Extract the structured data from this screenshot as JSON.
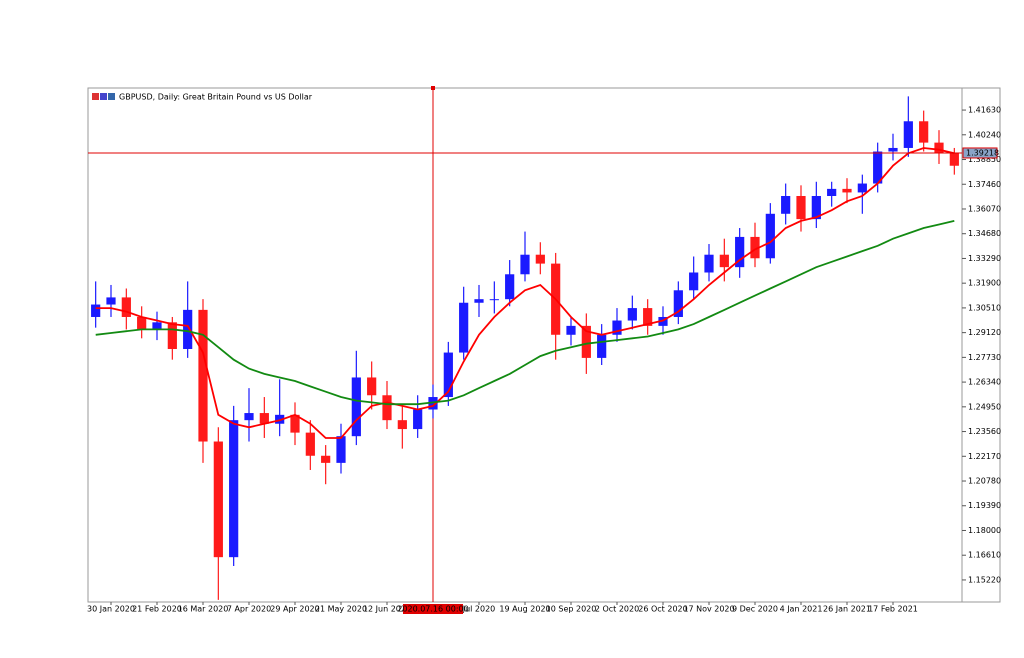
{
  "chart_data": {
    "type": "candlestick",
    "title": "GBPUSD, Daily:  Great Britain Pound vs US Dollar",
    "categories": [
      null,
      "30 Jan 2020",
      null,
      null,
      "21 Feb 2020",
      null,
      null,
      "16 Mar 2020",
      null,
      null,
      "7 Apr 2020",
      null,
      null,
      "29 Apr 2020",
      null,
      null,
      "21 May 2020",
      null,
      null,
      "12 Jun 2020",
      null,
      null,
      null,
      null,
      null,
      "Jul 2020",
      null,
      null,
      "19 Aug 2020",
      null,
      null,
      "10 Sep 2020",
      null,
      null,
      "2 Oct 2020",
      null,
      null,
      "26 Oct 2020",
      null,
      null,
      "17 Nov 2020",
      null,
      null,
      "9 Dec 2020",
      null,
      null,
      "4 Jan 2021",
      null,
      null,
      "26 Jan 2021",
      null,
      null,
      "17 Feb 2021",
      null,
      null,
      null,
      null
    ],
    "open": [
      1.3,
      1.307,
      1.311,
      1.3,
      1.293,
      1.297,
      1.282,
      1.304,
      1.23,
      1.165,
      1.242,
      1.246,
      1.24,
      1.245,
      1.235,
      1.222,
      1.218,
      1.233,
      1.266,
      1.256,
      1.242,
      1.237,
      1.248,
      1.255,
      1.28,
      1.308,
      1.31,
      1.31,
      1.324,
      1.335,
      1.33,
      1.29,
      1.295,
      1.277,
      1.29,
      1.298,
      1.305,
      1.295,
      1.3,
      1.315,
      1.325,
      1.335,
      1.328,
      1.345,
      1.333,
      1.358,
      1.368,
      1.355,
      1.368,
      1.372,
      1.37,
      1.375,
      1.393,
      1.395,
      1.41,
      1.398,
      1.392
    ],
    "high": [
      1.32,
      1.318,
      1.316,
      1.306,
      1.303,
      1.3,
      1.32,
      1.31,
      1.238,
      1.25,
      1.26,
      1.255,
      1.265,
      1.252,
      1.242,
      1.228,
      1.24,
      1.281,
      1.275,
      1.264,
      1.25,
      1.256,
      1.262,
      1.286,
      1.317,
      1.318,
      1.32,
      1.332,
      1.348,
      1.342,
      1.336,
      1.3,
      1.302,
      1.296,
      1.305,
      1.312,
      1.31,
      1.306,
      1.32,
      1.334,
      1.341,
      1.344,
      1.35,
      1.353,
      1.364,
      1.375,
      1.374,
      1.376,
      1.376,
      1.378,
      1.38,
      1.398,
      1.403,
      1.424,
      1.416,
      1.405,
      1.395
    ],
    "low": [
      1.294,
      1.3,
      1.293,
      1.288,
      1.287,
      1.276,
      1.277,
      1.218,
      1.141,
      1.16,
      1.23,
      1.232,
      1.233,
      1.228,
      1.214,
      1.206,
      1.212,
      1.228,
      1.248,
      1.237,
      1.226,
      1.232,
      1.243,
      1.25,
      1.276,
      1.3,
      1.302,
      1.306,
      1.32,
      1.324,
      1.276,
      1.284,
      1.268,
      1.273,
      1.286,
      1.293,
      1.29,
      1.29,
      1.296,
      1.31,
      1.32,
      1.32,
      1.322,
      1.328,
      1.33,
      1.352,
      1.348,
      1.35,
      1.362,
      1.364,
      1.358,
      1.37,
      1.388,
      1.39,
      1.393,
      1.386,
      1.38
    ],
    "close": [
      1.307,
      1.311,
      1.3,
      1.293,
      1.297,
      1.282,
      1.304,
      1.23,
      1.165,
      1.242,
      1.246,
      1.24,
      1.245,
      1.235,
      1.222,
      1.218,
      1.233,
      1.266,
      1.256,
      1.242,
      1.237,
      1.248,
      1.255,
      1.28,
      1.308,
      1.31,
      1.31,
      1.324,
      1.335,
      1.33,
      1.29,
      1.295,
      1.277,
      1.29,
      1.298,
      1.305,
      1.295,
      1.3,
      1.315,
      1.325,
      1.335,
      1.328,
      1.345,
      1.333,
      1.358,
      1.368,
      1.355,
      1.368,
      1.372,
      1.37,
      1.375,
      1.393,
      1.395,
      1.41,
      1.398,
      1.392,
      1.385
    ],
    "up_color": "#1a1aff",
    "down_color": "#ff1a1a",
    "lines": [
      {
        "color": "#ff0000",
        "values": [
          1.305,
          1.305,
          1.303,
          1.3,
          1.298,
          1.296,
          1.295,
          1.28,
          1.245,
          1.24,
          1.238,
          1.24,
          1.242,
          1.245,
          1.24,
          1.232,
          1.232,
          1.242,
          1.25,
          1.252,
          1.25,
          1.248,
          1.25,
          1.258,
          1.275,
          1.29,
          1.3,
          1.308,
          1.315,
          1.318,
          1.31,
          1.3,
          1.292,
          1.29,
          1.292,
          1.294,
          1.296,
          1.298,
          1.303,
          1.31,
          1.318,
          1.325,
          1.332,
          1.338,
          1.342,
          1.35,
          1.354,
          1.356,
          1.36,
          1.365,
          1.368,
          1.375,
          1.385,
          1.392,
          1.395,
          1.394,
          1.392
        ]
      },
      {
        "color": "#128a12",
        "values": [
          1.29,
          1.291,
          1.292,
          1.293,
          1.293,
          1.293,
          1.292,
          1.29,
          1.283,
          1.276,
          1.271,
          1.268,
          1.266,
          1.264,
          1.261,
          1.258,
          1.255,
          1.253,
          1.252,
          1.251,
          1.251,
          1.251,
          1.252,
          1.253,
          1.256,
          1.26,
          1.264,
          1.268,
          1.273,
          1.278,
          1.281,
          1.283,
          1.285,
          1.286,
          1.287,
          1.288,
          1.289,
          1.291,
          1.293,
          1.296,
          1.3,
          1.304,
          1.308,
          1.312,
          1.316,
          1.32,
          1.324,
          1.328,
          1.331,
          1.334,
          1.337,
          1.34,
          1.344,
          1.347,
          1.35,
          1.352,
          1.354
        ]
      }
    ],
    "ylim": [
      1.1398,
      1.4287
    ],
    "yticks": [
      {
        "value": 1.4163,
        "label": "1.41630"
      },
      {
        "value": 1.4024,
        "label": "1.40240"
      },
      {
        "value": 1.3885,
        "label": "1.38850"
      },
      {
        "value": 1.3746,
        "label": "1.37460"
      },
      {
        "value": 1.3607,
        "label": "1.36070"
      },
      {
        "value": 1.3468,
        "label": "1.34680"
      },
      {
        "value": 1.3329,
        "label": "1.33290"
      },
      {
        "value": 1.319,
        "label": "1.31900"
      },
      {
        "value": 1.3051,
        "label": "1.30510"
      },
      {
        "value": 1.2912,
        "label": "1.29120"
      },
      {
        "value": 1.2773,
        "label": "1.27730"
      },
      {
        "value": 1.2634,
        "label": "1.26340"
      },
      {
        "value": 1.2495,
        "label": "1.24950"
      },
      {
        "value": 1.2356,
        "label": "1.23560"
      },
      {
        "value": 1.2217,
        "label": "1.22170"
      },
      {
        "value": 1.2078,
        "label": "1.20780"
      },
      {
        "value": 1.1939,
        "label": "1.19390"
      },
      {
        "value": 1.18,
        "label": "1.18000"
      },
      {
        "value": 1.1661,
        "label": "1.16610"
      },
      {
        "value": 1.1522,
        "label": "1.15220"
      }
    ],
    "crosshair_price": {
      "value": 1.39218,
      "label": "1.39218"
    },
    "crosshair_time": "2020.07.16 00:00"
  }
}
